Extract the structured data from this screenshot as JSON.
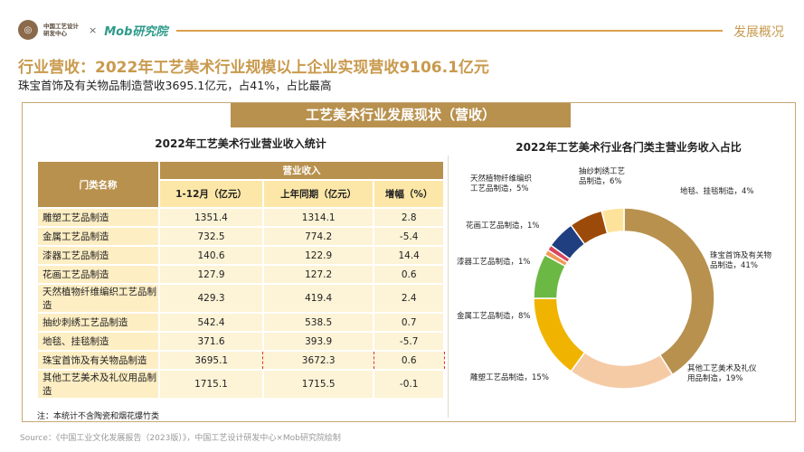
{
  "header": {
    "org_logo_text": "中国工艺设计研发中心",
    "separator": "×",
    "mob_logo_text": "Mob研究院",
    "section": "发展概况"
  },
  "title": "行业营收：2022年工艺美术行业规模以上企业实现营收9106.1亿元",
  "subtitle": "珠宝首饰及有关物品制造营收3695.1亿元，占41%，占比最高",
  "band_title": "工艺美术行业发展现状（营收）",
  "table": {
    "title": "2022年工艺美术行业营业收入统计",
    "headers": {
      "category": "门类名称",
      "revenue": "营业收入",
      "current": "1-12月（亿元）",
      "previous": "上年同期（亿元）",
      "growth": "增幅（%）"
    },
    "rows": [
      {
        "name": "雕塑工艺品制造",
        "current": "1351.4",
        "previous": "1314.1",
        "growth": "2.8"
      },
      {
        "name": "金属工艺品制造",
        "current": "732.5",
        "previous": "774.2",
        "growth": "-5.4"
      },
      {
        "name": "漆器工艺品制造",
        "current": "140.6",
        "previous": "122.9",
        "growth": "14.4"
      },
      {
        "name": "花画工艺品制造",
        "current": "127.9",
        "previous": "127.2",
        "growth": "0.6"
      },
      {
        "name": "天然植物纤维编织工艺品制造",
        "current": "429.3",
        "previous": "419.4",
        "growth": "2.4"
      },
      {
        "name": "抽纱刺绣工艺品制造",
        "current": "542.4",
        "previous": "538.5",
        "growth": "0.7"
      },
      {
        "name": "地毯、挂毯制造",
        "current": "371.6",
        "previous": "393.9",
        "growth": "-5.7"
      },
      {
        "name": "珠宝首饰及有关物品制造",
        "current": "3695.1",
        "previous": "3672.3",
        "growth": "0.6",
        "highlighted": true
      },
      {
        "name": "其他工艺美术及礼仪用品制造",
        "current": "1715.1",
        "previous": "1715.5",
        "growth": "-0.1"
      }
    ],
    "note": "注：本统计不含陶瓷和烟花爆竹类"
  },
  "chart_data": {
    "type": "pie",
    "donut": true,
    "title": "2022年工艺美术行业各门类主营业务收入占比",
    "slices": [
      {
        "label": "珠宝首饰及有关物品制造，41%",
        "value": 41,
        "color": "#b8914e"
      },
      {
        "label": "其他工艺美术及礼仪用品制造，19%",
        "value": 19,
        "color": "#f5cba6"
      },
      {
        "label": "雕塑工艺品制造，15%",
        "value": 15,
        "color": "#f0b400"
      },
      {
        "label": "金属工艺品制造，8%",
        "value": 8,
        "color": "#6cb844"
      },
      {
        "label": "漆器工艺品制造，1%",
        "value": 1,
        "color": "#f09a58"
      },
      {
        "label": "花画工艺品制造，1%",
        "value": 1,
        "color": "#d9455f"
      },
      {
        "label": "天然植物纤维编织工艺品制造，5%",
        "value": 5,
        "color": "#1f3f80"
      },
      {
        "label": "抽纱刺绣工艺品制造，6%",
        "value": 6,
        "color": "#9c4a0a"
      },
      {
        "label": "地毯、挂毯制造，4%",
        "value": 4,
        "color": "#fde39a"
      }
    ]
  },
  "source": "Source：《中国工业文化发展报告（2023版）》，中国工艺设计研发中心×Mob研究院绘制"
}
